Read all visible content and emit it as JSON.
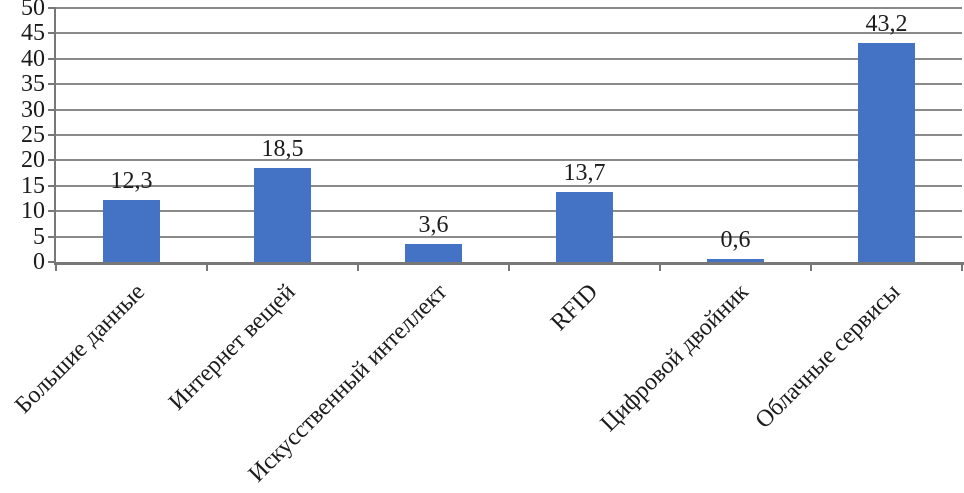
{
  "chart_data": {
    "type": "bar",
    "title": "",
    "xlabel": "",
    "ylabel": "",
    "categories": [
      "Большие данные",
      "Интернет вещей",
      "Искусственный интеллект",
      "RFID",
      "Цифровой двойник",
      "Облачные сервисы"
    ],
    "values": [
      12.3,
      18.5,
      3.6,
      13.7,
      0.6,
      43.2
    ],
    "value_labels": [
      "12,3",
      "18,5",
      "3,6",
      "13,7",
      "0,6",
      "43,2"
    ],
    "ylim": [
      0,
      50
    ],
    "yticks": [
      0,
      5,
      10,
      15,
      20,
      25,
      30,
      35,
      40,
      45,
      50
    ],
    "grid": true,
    "legend": false,
    "bar_color": "#4472C4",
    "gridline_color": "#8a8a8a",
    "axis_color": "#777777",
    "text_color": "#1b1b1b"
  }
}
